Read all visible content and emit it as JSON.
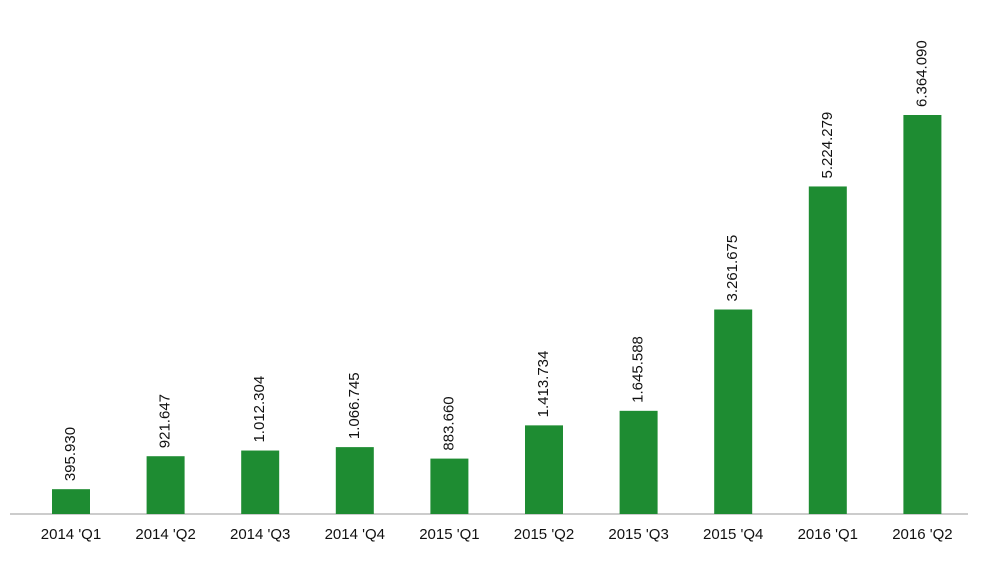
{
  "chart_data": {
    "type": "bar",
    "categories": [
      "2014 'Q1",
      "2014 'Q2",
      "2014 'Q3",
      "2014 'Q4",
      "2015 'Q1",
      "2015 'Q2",
      "2015 'Q3",
      "2015 'Q4",
      "2016 'Q1",
      "2016 'Q2"
    ],
    "values": [
      395930,
      921647,
      1012304,
      1066745,
      883660,
      1413734,
      1645588,
      3261675,
      5224279,
      6364090
    ],
    "value_labels": [
      "395.930",
      "921.647",
      "1.012.304",
      "1.066.745",
      "883.660",
      "1.413.734",
      "1.645.588",
      "3.261.675",
      "5.224.279",
      "6.364.090"
    ],
    "color": "#1e8c32"
  }
}
